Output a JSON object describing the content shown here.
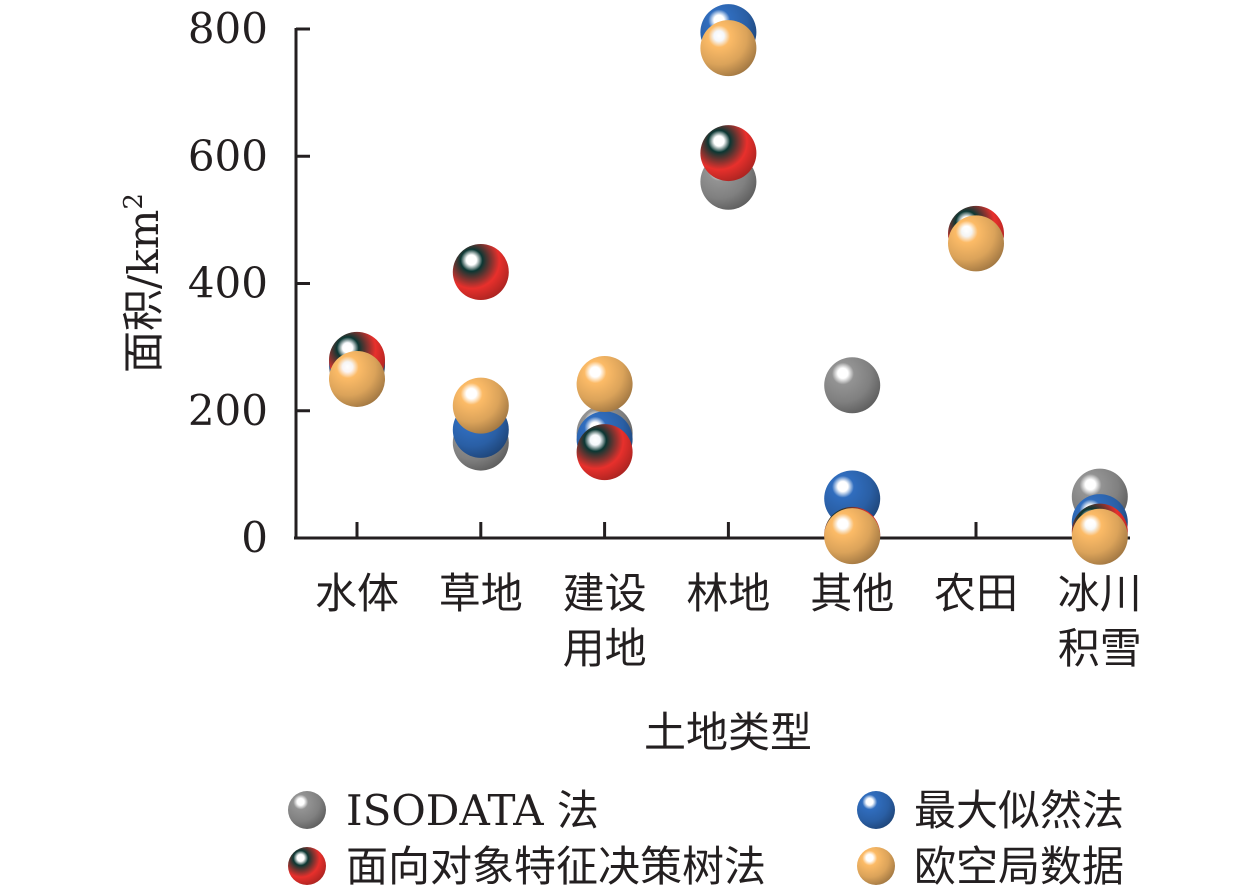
{
  "chart_data": {
    "type": "scatter",
    "title": "",
    "xlabel": "土地类型",
    "ylabel": "面积/km²",
    "ylabel_parts": {
      "base": "面积/km",
      "sup": "2"
    },
    "ylim": [
      0,
      800
    ],
    "yticks": [
      0,
      200,
      400,
      600,
      800
    ],
    "grid": false,
    "legend_position": "bottom",
    "categories": [
      {
        "lines": [
          "水体"
        ]
      },
      {
        "lines": [
          "草地"
        ]
      },
      {
        "lines": [
          "建设",
          "用地"
        ]
      },
      {
        "lines": [
          "林地"
        ]
      },
      {
        "lines": [
          "其他"
        ]
      },
      {
        "lines": [
          "农田"
        ]
      },
      {
        "lines": [
          "冰川",
          "积雪"
        ]
      }
    ],
    "series": [
      {
        "name": "ISODATA 法",
        "color": "#808080",
        "values": [
          270,
          150,
          165,
          560,
          240,
          null,
          65
        ]
      },
      {
        "name": "最大似然法",
        "color": "#2a5fa5",
        "values": [
          275,
          170,
          155,
          795,
          62,
          null,
          25
        ]
      },
      {
        "name": "面向对象特征决策树法",
        "color": "#e8302c",
        "values": [
          280,
          418,
          135,
          605,
          5,
          478,
          10
        ]
      },
      {
        "name": "欧空局数据",
        "color": "#dba35a",
        "values": [
          250,
          208,
          242,
          770,
          3,
          463,
          2
        ]
      }
    ]
  }
}
